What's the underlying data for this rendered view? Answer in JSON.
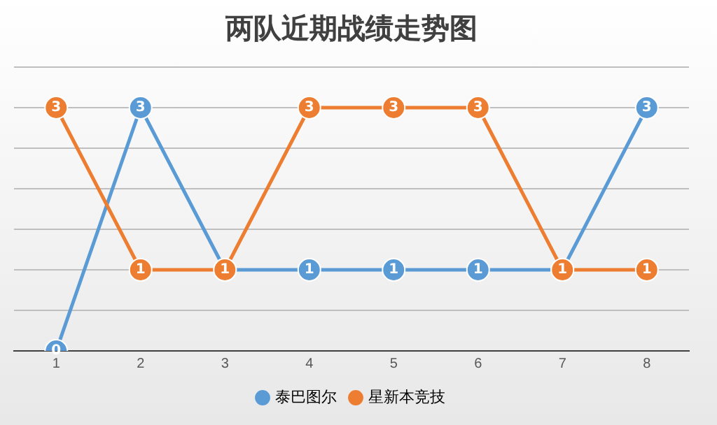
{
  "chart_data": {
    "type": "line",
    "title": "两队近期战绩走势图",
    "categories": [
      "1",
      "2",
      "3",
      "4",
      "5",
      "6",
      "7",
      "8"
    ],
    "series": [
      {
        "name": "泰巴图尔",
        "color": "#5b9bd5",
        "values": [
          0,
          3,
          1,
          1,
          1,
          1,
          1,
          3
        ],
        "value_labels": [
          "0",
          "3",
          null,
          "1",
          "1",
          "1",
          null,
          "3"
        ]
      },
      {
        "name": "星新本竞技",
        "color": "#ed7d31",
        "values": [
          3,
          1,
          1,
          3,
          3,
          3,
          1,
          1
        ]
      }
    ],
    "ylim": [
      0,
      3.5
    ],
    "yticks": [
      {
        "value": 0,
        "label": null
      },
      {
        "value": 0.5,
        "label": null
      },
      {
        "value": 1,
        "label": null
      },
      {
        "value": 1.5,
        "label": null
      },
      {
        "value": 2,
        "label": null
      },
      {
        "value": 2.5,
        "label": null
      },
      {
        "value": 3,
        "label": null
      },
      {
        "value": 3.5,
        "label": null
      }
    ],
    "tick_labels": "x",
    "grid": "y",
    "legend": "bottom",
    "marker": "circle",
    "line_style": "solid",
    "data_labels": true
  }
}
